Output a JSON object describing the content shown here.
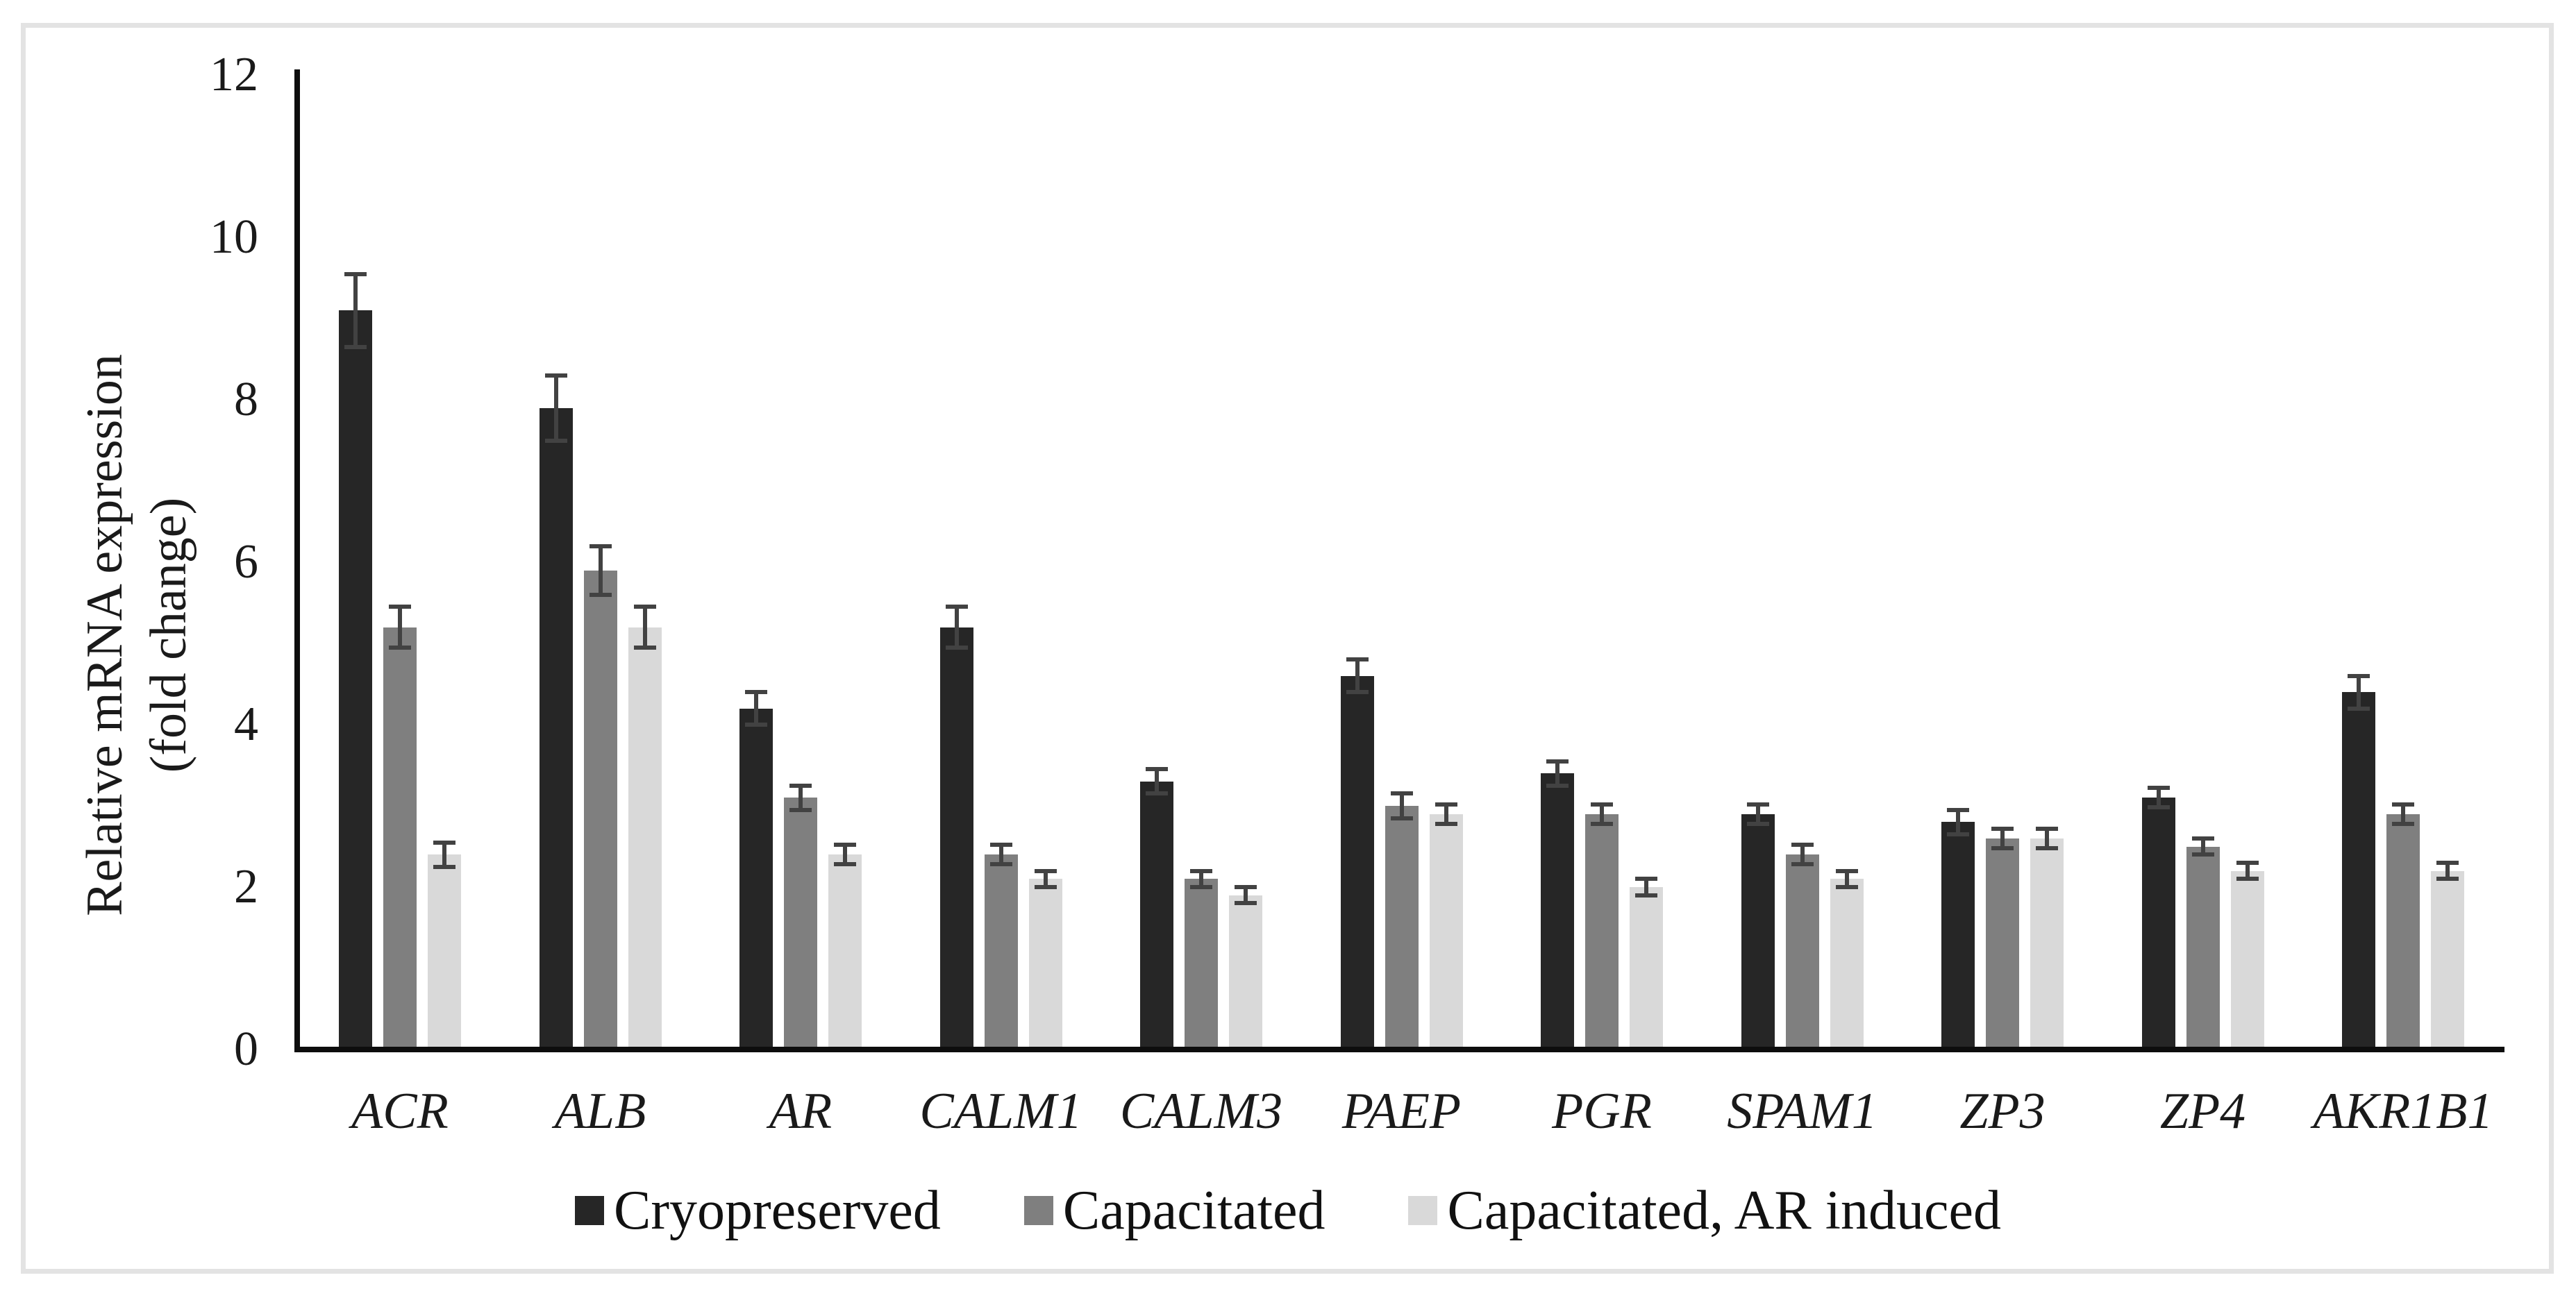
{
  "figure": {
    "background_color": "#ffffff",
    "frame_border_color": "#e3e3e3",
    "axis_color": "#0d0d0d",
    "text_color": "#1a1a1a"
  },
  "chart_data": {
    "type": "bar",
    "title": "",
    "ylabel_line1": "Relative mRNA expression",
    "ylabel_line2": "(fold change)",
    "xlabel": "",
    "ylim": [
      0,
      12
    ],
    "y_ticks": [
      0,
      2,
      4,
      6,
      8,
      10,
      12
    ],
    "grid": false,
    "legend_position": "bottom",
    "error_bar_color": "#424242",
    "categories": [
      "ACR",
      "ALB",
      "AR",
      "CALM1",
      "CALM3",
      "PAEP",
      "PGR",
      "SPAM1",
      "ZP3",
      "ZP4",
      "AKR1B1"
    ],
    "series": [
      {
        "name": "Cryopreserved",
        "color": "#262626",
        "values": [
          9.1,
          7.9,
          4.2,
          5.2,
          3.3,
          4.6,
          3.4,
          2.9,
          2.8,
          3.1,
          4.4
        ],
        "errors": [
          0.45,
          0.4,
          0.2,
          0.25,
          0.15,
          0.2,
          0.15,
          0.12,
          0.15,
          0.12,
          0.2
        ]
      },
      {
        "name": "Capacitated",
        "color": "#7f7f7f",
        "values": [
          5.2,
          5.9,
          3.1,
          2.4,
          2.1,
          3.0,
          2.9,
          2.4,
          2.6,
          2.5,
          2.9
        ],
        "errors": [
          0.25,
          0.3,
          0.15,
          0.12,
          0.1,
          0.15,
          0.12,
          0.12,
          0.12,
          0.1,
          0.12
        ]
      },
      {
        "name": "Capacitated, AR induced",
        "color": "#d9d9d9",
        "values": [
          2.4,
          5.2,
          2.4,
          2.1,
          1.9,
          2.9,
          2.0,
          2.1,
          2.6,
          2.2,
          2.2
        ],
        "errors": [
          0.15,
          0.25,
          0.12,
          0.1,
          0.1,
          0.12,
          0.1,
          0.1,
          0.12,
          0.1,
          0.1
        ]
      }
    ]
  }
}
